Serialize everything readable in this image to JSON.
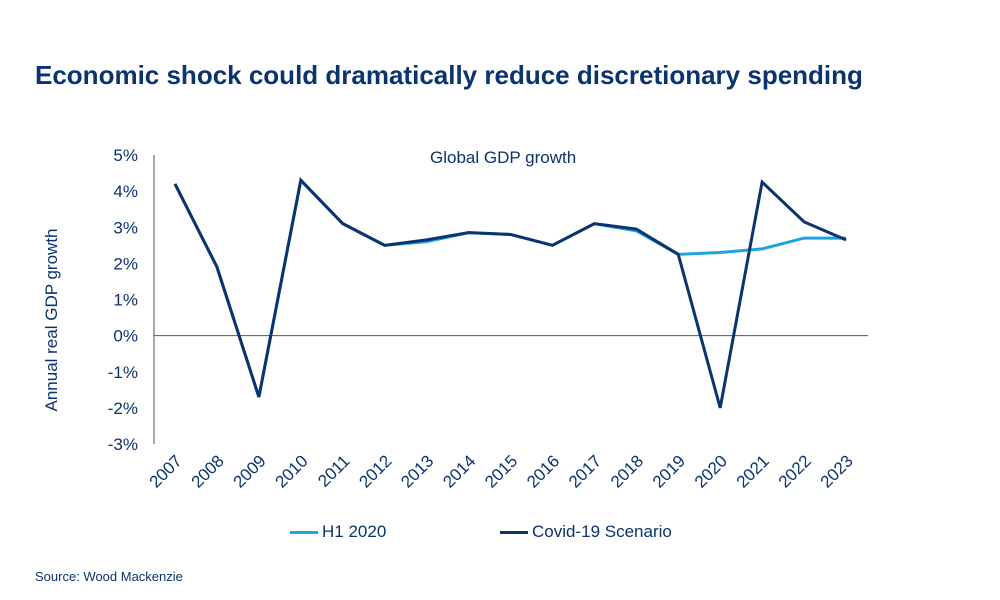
{
  "title": "Economic shock could dramatically reduce discretionary spending",
  "source": "Source: Wood Mackenzie",
  "chart_data": {
    "type": "line",
    "title": "Global GDP growth",
    "xlabel": "",
    "ylabel": "Annual real GDP growth",
    "ylim": [
      -3,
      5
    ],
    "yticks": [
      "-3%",
      "-2%",
      "-1%",
      "0%",
      "1%",
      "2%",
      "3%",
      "4%",
      "5%"
    ],
    "grid": false,
    "legend_position": "bottom",
    "categories": [
      "2007",
      "2008",
      "2009",
      "2010",
      "2011",
      "2012",
      "2013",
      "2014",
      "2015",
      "2016",
      "2017",
      "2018",
      "2019",
      "2020",
      "2021",
      "2022",
      "2023"
    ],
    "series": [
      {
        "name": "H1 2020",
        "color": "#1ea3e0",
        "values": [
          4.2,
          1.9,
          -1.7,
          4.3,
          3.1,
          2.5,
          2.6,
          2.85,
          2.8,
          2.5,
          3.1,
          2.9,
          2.25,
          2.3,
          2.4,
          2.7,
          2.7
        ]
      },
      {
        "name": "Covid-19 Scenario",
        "color": "#0b3370",
        "values": [
          4.2,
          1.9,
          -1.7,
          4.3,
          3.1,
          2.5,
          2.65,
          2.85,
          2.8,
          2.5,
          3.1,
          2.95,
          2.25,
          -2.0,
          4.25,
          3.15,
          2.65
        ]
      }
    ]
  }
}
